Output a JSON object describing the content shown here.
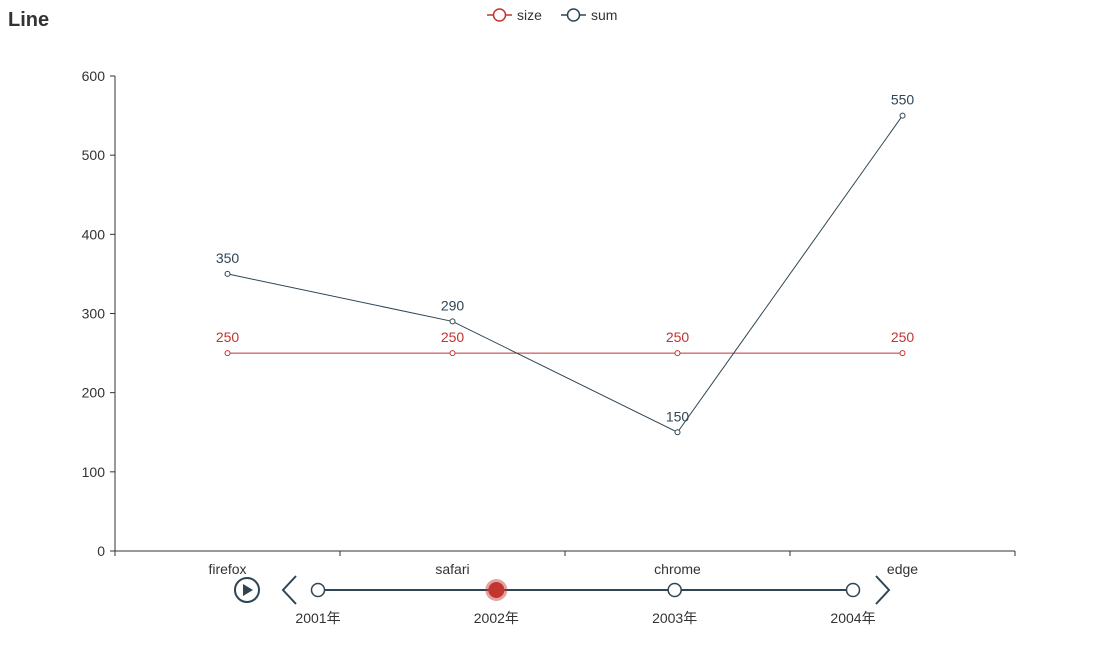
{
  "chart_data": {
    "type": "line",
    "title": "Line",
    "categories": [
      "firefox",
      "safari",
      "chrome",
      "edge"
    ],
    "series": [
      {
        "name": "size",
        "values": [
          250,
          250,
          250,
          250
        ],
        "color": "#c23531"
      },
      {
        "name": "sum",
        "values": [
          350,
          290,
          150,
          550
        ],
        "color": "#2f4554"
      }
    ],
    "ylim": [
      0,
      600
    ],
    "yticks": [
      0,
      100,
      200,
      300,
      400,
      500,
      600
    ],
    "show_data_labels": true,
    "grid": false,
    "legend_position": "top-center"
  },
  "timeline": {
    "items": [
      "2001年",
      "2002年",
      "2003年",
      "2004年"
    ],
    "current_index": 1,
    "active_color": "#c23531",
    "line_color": "#2f4554"
  },
  "icons": {
    "play": "play-icon",
    "prev": "chevron-left-icon",
    "next": "chevron-right-icon"
  }
}
